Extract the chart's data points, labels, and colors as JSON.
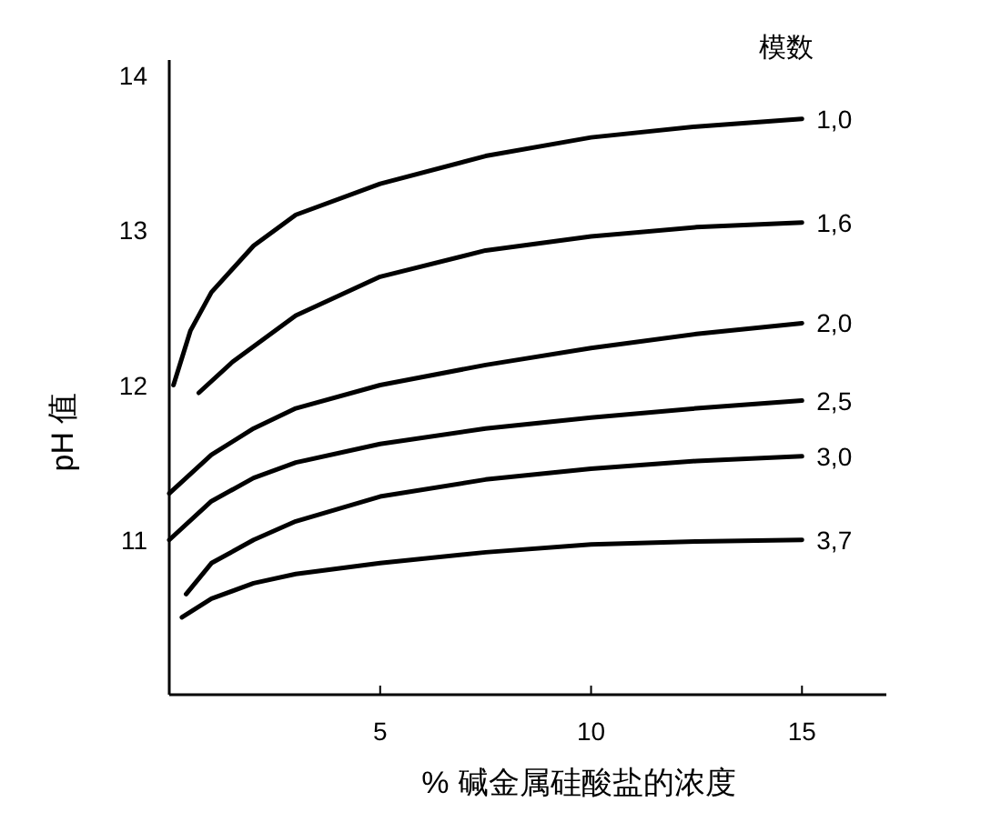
{
  "chart_data": {
    "type": "line",
    "xlabel": "% 碱金属硅酸盐的浓度",
    "ylabel": "pH 值",
    "legend_title": "模数",
    "xlim": [
      0,
      17
    ],
    "ylim": [
      10,
      14.1
    ],
    "xticks": [
      5,
      10,
      15
    ],
    "yticks": [
      11,
      12,
      13,
      14
    ],
    "series": [
      {
        "name": "1,0",
        "color": "#000000",
        "x": [
          0.1,
          0.5,
          1,
          2,
          3,
          5,
          7.5,
          10,
          12.5,
          15
        ],
        "values": [
          12.0,
          12.35,
          12.6,
          12.9,
          13.1,
          13.3,
          13.48,
          13.6,
          13.67,
          13.72
        ]
      },
      {
        "name": "1,6",
        "color": "#000000",
        "x": [
          0.7,
          1.5,
          3,
          5,
          7.5,
          10,
          12.5,
          15
        ],
        "values": [
          11.95,
          12.15,
          12.45,
          12.7,
          12.87,
          12.96,
          13.02,
          13.05
        ]
      },
      {
        "name": "2,0",
        "color": "#000000",
        "x": [
          0,
          1,
          2,
          3,
          5,
          7.5,
          10,
          12.5,
          15
        ],
        "values": [
          11.3,
          11.55,
          11.72,
          11.85,
          12.0,
          12.13,
          12.24,
          12.33,
          12.4
        ]
      },
      {
        "name": "2,5",
        "color": "#000000",
        "x": [
          0,
          1,
          2,
          3,
          5,
          7.5,
          10,
          12.5,
          15
        ],
        "values": [
          11.0,
          11.25,
          11.4,
          11.5,
          11.62,
          11.72,
          11.79,
          11.85,
          11.9
        ]
      },
      {
        "name": "3,0",
        "color": "#000000",
        "x": [
          0.4,
          1,
          2,
          3,
          5,
          7.5,
          10,
          12.5,
          15
        ],
        "values": [
          10.65,
          10.85,
          11.0,
          11.12,
          11.28,
          11.39,
          11.46,
          11.51,
          11.54
        ]
      },
      {
        "name": "3,7",
        "color": "#000000",
        "x": [
          0.3,
          1,
          2,
          3,
          5,
          7.5,
          10,
          12.5,
          15
        ],
        "values": [
          10.5,
          10.62,
          10.72,
          10.78,
          10.85,
          10.92,
          10.97,
          10.99,
          11.0
        ]
      }
    ]
  }
}
